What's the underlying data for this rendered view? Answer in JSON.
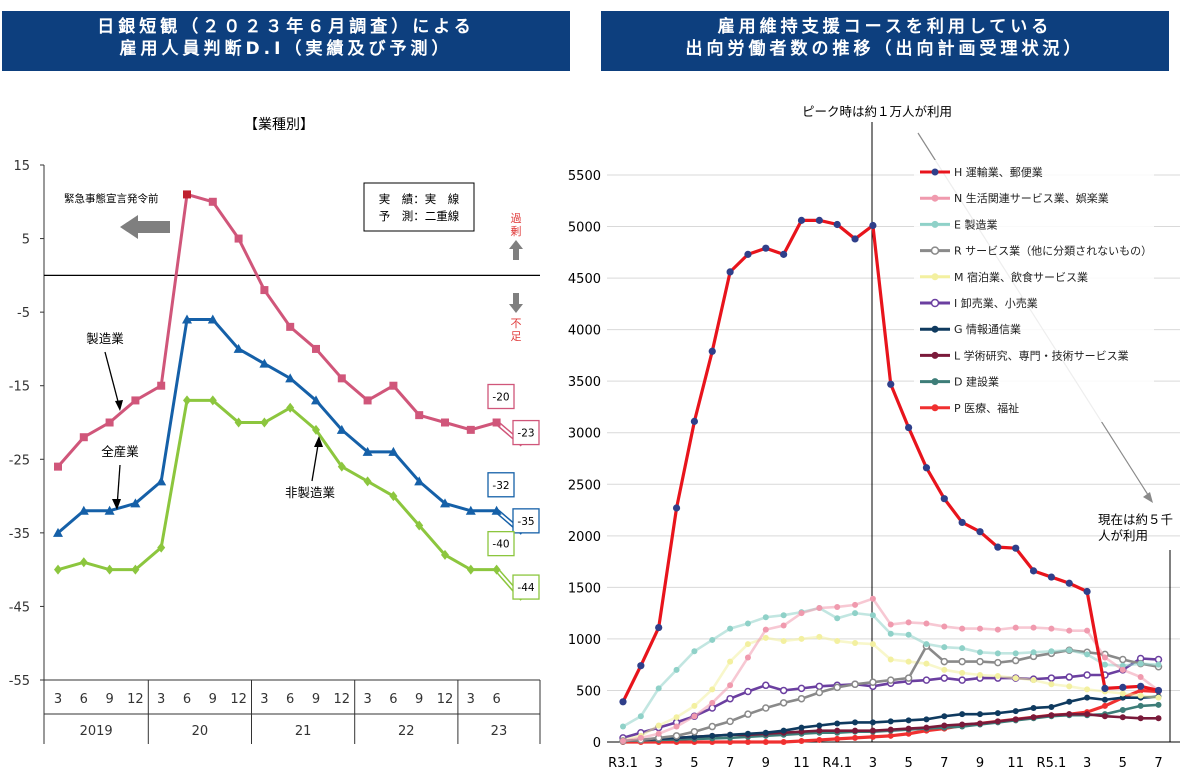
{
  "left_header": {
    "line1": "日銀短観（２０２３年６月調査）による",
    "line2": "雇用人員判断D.I（実績及び予測）"
  },
  "right_header": {
    "line1": "雇用維持支援コースを利用している",
    "line2": "出向労働者数の推移（出向計画受理状況）"
  },
  "colors": {
    "header_bg": "#0d3f7e",
    "manufacturing": "#d0567a",
    "all_industries": "#1560a8",
    "non_manufacturing": "#8cc63e",
    "excess_label": "#e03c3c"
  },
  "chart_data": [
    {
      "type": "line",
      "title": "【業種別】",
      "ylim": [
        -55,
        15
      ],
      "yticks": [
        15,
        5,
        -5,
        -15,
        -25,
        -35,
        -45,
        -55
      ],
      "x_month_labels": [
        "3",
        "6",
        "9",
        "12",
        "3",
        "6",
        "9",
        "12",
        "3",
        "6",
        "9",
        "12",
        "3",
        "6",
        "9",
        "12",
        "3",
        "6"
      ],
      "year_groups": [
        {
          "label": "2019",
          "span": 4
        },
        {
          "label": "20",
          "span": 4
        },
        {
          "label": "21",
          "span": 4
        },
        {
          "label": "22",
          "span": 4
        },
        {
          "label": "23",
          "span": 2
        }
      ],
      "series": [
        {
          "name": "製造業",
          "values": [
            -26,
            -22,
            -20,
            -17,
            -15,
            11,
            10,
            5,
            -2,
            -7,
            -10,
            -14,
            -17,
            -15,
            -19,
            -20,
            -21,
            -20
          ],
          "forecast": -23
        },
        {
          "name": "全産業",
          "values": [
            -35,
            -32,
            -32,
            -31,
            -28,
            -6,
            -6,
            -10,
            -12,
            -14,
            -17,
            -21,
            -24,
            -24,
            -28,
            -31,
            -32,
            -32
          ],
          "forecast": -35
        },
        {
          "name": "非製造業",
          "values": [
            -40,
            -39,
            -40,
            -40,
            -37,
            -17,
            -17,
            -20,
            -20,
            -18,
            -21,
            -26,
            -28,
            -30,
            -34,
            -38,
            -40,
            -40
          ],
          "forecast": -44
        }
      ],
      "data_labels": {
        "manufacturing_actual": "-20",
        "manufacturing_forecast": "-23",
        "all_actual": "-32",
        "all_forecast": "-35",
        "non_actual": "-40",
        "non_forecast": "-44"
      },
      "legend": {
        "line1": "実　績：実　線",
        "line2": "予　測：二重線"
      },
      "annotations": {
        "emergency": "緊急事態宣言発令前",
        "excess": "過剰",
        "shortage": "不足"
      }
    },
    {
      "type": "line",
      "ylim": [
        0,
        5500
      ],
      "yticks": [
        0,
        500,
        1000,
        1500,
        2000,
        2500,
        3000,
        3500,
        4000,
        4500,
        5000,
        5500
      ],
      "x_labels": [
        "R3.1",
        "3",
        "5",
        "7",
        "9",
        "11",
        "R4.1",
        "3",
        "5",
        "7",
        "9",
        "11",
        "R5.1",
        "3",
        "5",
        "7"
      ],
      "annotations": {
        "peak": "ピーク時は約１万人が利用",
        "current_line1": "現在は約５千",
        "current_line2": "人が利用"
      },
      "series": [
        {
          "name": "H 運輸業、郵便業",
          "color": "#e8141c",
          "values": [
            390,
            740,
            1110,
            2270,
            3110,
            3790,
            4560,
            4730,
            4790,
            4730,
            5060,
            5060,
            5020,
            4880,
            5010,
            3470,
            3050,
            2660,
            2360,
            2130,
            2040,
            1890,
            1880,
            1660,
            1600,
            1540,
            1460,
            520,
            530,
            540,
            500
          ]
        },
        {
          "name": "N 生活関連サービス業、娯楽業",
          "color": "#f09aae",
          "values": [
            10,
            40,
            80,
            150,
            250,
            380,
            550,
            820,
            1090,
            1130,
            1250,
            1300,
            1310,
            1330,
            1390,
            1140,
            1160,
            1150,
            1120,
            1100,
            1100,
            1090,
            1110,
            1110,
            1100,
            1080,
            1080,
            820,
            700,
            630,
            500
          ]
        },
        {
          "name": "E 製造業",
          "color": "#8fd1c8",
          "values": [
            150,
            250,
            520,
            700,
            880,
            990,
            1100,
            1150,
            1210,
            1230,
            1260,
            1300,
            1200,
            1250,
            1230,
            1050,
            1040,
            950,
            920,
            910,
            870,
            860,
            860,
            870,
            880,
            890,
            850,
            750,
            740,
            760,
            750
          ]
        },
        {
          "name": "R サービス業（他に分類されないもの）",
          "color": "#8a8a8a",
          "values": [
            10,
            20,
            40,
            60,
            100,
            150,
            200,
            270,
            330,
            380,
            420,
            480,
            530,
            560,
            580,
            600,
            620,
            930,
            780,
            780,
            780,
            770,
            790,
            830,
            860,
            890,
            870,
            850,
            800,
            760,
            730
          ]
        },
        {
          "name": "M 宿泊業、飲食サービス業",
          "color": "#f3f0a0",
          "values": [
            20,
            60,
            160,
            240,
            350,
            510,
            780,
            950,
            1010,
            980,
            1000,
            1020,
            980,
            960,
            950,
            800,
            780,
            760,
            700,
            670,
            650,
            640,
            620,
            600,
            560,
            540,
            510,
            490,
            470,
            450,
            430
          ]
        },
        {
          "name": "I 卸売業、小売業",
          "color": "#6b3fa0",
          "values": [
            40,
            90,
            140,
            190,
            250,
            330,
            420,
            490,
            550,
            500,
            520,
            540,
            550,
            560,
            540,
            570,
            590,
            600,
            620,
            600,
            620,
            620,
            620,
            610,
            620,
            630,
            650,
            650,
            700,
            810,
            800
          ]
        },
        {
          "name": "G 情報通信業",
          "color": "#0f3a5f",
          "values": [
            10,
            20,
            30,
            40,
            50,
            60,
            70,
            80,
            90,
            110,
            140,
            160,
            180,
            190,
            190,
            200,
            210,
            220,
            250,
            270,
            270,
            280,
            300,
            330,
            340,
            390,
            430,
            410,
            430,
            430,
            440
          ]
        },
        {
          "name": "L 学術研究、専門・技術サービス業",
          "color": "#7a1a3a",
          "values": [
            10,
            20,
            30,
            40,
            50,
            60,
            70,
            70,
            80,
            90,
            100,
            110,
            110,
            110,
            110,
            120,
            130,
            140,
            160,
            170,
            180,
            200,
            220,
            240,
            260,
            270,
            270,
            250,
            240,
            230,
            230
          ]
        },
        {
          "name": "D 建設業",
          "color": "#3d7d78",
          "values": [
            10,
            15,
            20,
            25,
            30,
            35,
            40,
            50,
            60,
            70,
            80,
            90,
            90,
            100,
            100,
            110,
            120,
            130,
            140,
            150,
            170,
            190,
            210,
            230,
            250,
            260,
            260,
            270,
            310,
            350,
            360
          ]
        },
        {
          "name": "P 医療、福祉",
          "color": "#f03030",
          "values": [
            0,
            0,
            0,
            0,
            0,
            0,
            0,
            0,
            0,
            0,
            10,
            20,
            30,
            40,
            50,
            60,
            80,
            110,
            130,
            160,
            180,
            200,
            220,
            240,
            260,
            270,
            290,
            350,
            430,
            500,
            490
          ]
        }
      ]
    }
  ]
}
